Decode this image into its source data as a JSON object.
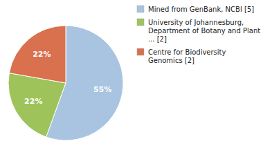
{
  "chart_data": {
    "type": "pie",
    "categories": [
      "Mined from GenBank, NCBI [5]",
      "University of Johannesburg,\nDepartment of Botany and Plant\n... [2]",
      "Centre for Biodiversity\nGenomics [2]"
    ],
    "values": [
      55,
      22,
      22
    ],
    "value_labels": [
      "55%",
      "22%",
      "22%"
    ],
    "colors": [
      "#a8c4e0",
      "#9dc35a",
      "#d9704e"
    ],
    "data_labels": true,
    "legend": "right"
  }
}
